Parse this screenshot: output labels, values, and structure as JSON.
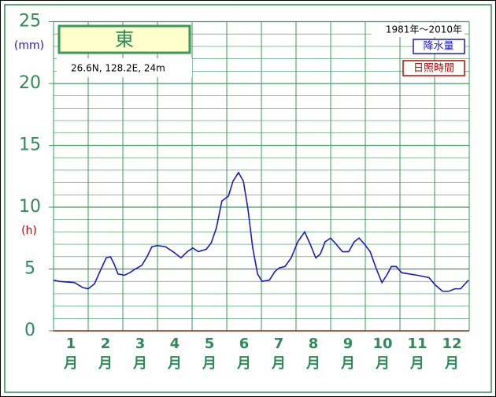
{
  "chart_data": {
    "type": "line",
    "station": "東",
    "location": "26.6N,  128.2E,  24m",
    "period": "1981年～2010年",
    "y_label": "(mm)",
    "y2_label": "(h)",
    "categories": [
      "1",
      "2",
      "3",
      "4",
      "5",
      "6",
      "7",
      "8",
      "9",
      "10",
      "11",
      "12"
    ],
    "category_suffix": "月",
    "xlim": [
      0,
      12
    ],
    "ylim": [
      0,
      25
    ],
    "yticks": [
      0,
      5,
      10,
      15,
      20,
      25
    ],
    "grid": true,
    "legend": "top-right",
    "series": [
      {
        "name": "降水量",
        "color": "#1a1acc",
        "x": [
          0,
          0.16,
          0.61,
          0.84,
          1.0,
          1.18,
          1.34,
          1.52,
          1.64,
          1.75,
          1.86,
          2.05,
          2.2,
          2.36,
          2.55,
          2.7,
          2.84,
          3.0,
          3.23,
          3.45,
          3.68,
          3.86,
          4.02,
          4.18,
          4.41,
          4.55,
          4.7,
          4.86,
          5.05,
          5.18,
          5.34,
          5.48,
          5.61,
          5.75,
          5.89,
          6.02,
          6.23,
          6.39,
          6.52,
          6.68,
          6.86,
          7.05,
          7.25,
          7.41,
          7.57,
          7.7,
          7.84,
          8.0,
          8.16,
          8.34,
          8.52,
          8.68,
          8.82,
          8.98,
          9.14,
          9.32,
          9.48,
          9.64,
          9.75,
          9.89,
          10.05,
          10.27,
          10.5,
          10.84,
          11.02,
          11.23,
          11.41,
          11.59,
          11.75,
          11.98
        ],
        "values": [
          4.1,
          4.0,
          3.9,
          3.5,
          3.4,
          3.8,
          4.8,
          5.9,
          6.0,
          5.4,
          4.6,
          4.5,
          4.7,
          5.0,
          5.3,
          6.0,
          6.8,
          6.9,
          6.8,
          6.4,
          5.9,
          6.4,
          6.7,
          6.4,
          6.6,
          7.1,
          8.3,
          10.5,
          10.9,
          12.1,
          12.8,
          12.1,
          9.9,
          6.7,
          4.6,
          4.0,
          4.1,
          4.8,
          5.1,
          5.2,
          5.9,
          7.2,
          8.0,
          7.0,
          5.9,
          6.2,
          7.2,
          7.5,
          7.0,
          6.4,
          6.4,
          7.2,
          7.5,
          7.0,
          6.4,
          5.0,
          3.9,
          4.6,
          5.2,
          5.2,
          4.7,
          4.6,
          4.5,
          4.3,
          3.7,
          3.2,
          3.2,
          3.4,
          3.4,
          4.1
        ]
      }
    ],
    "secondary_legend": {
      "name": "日照時間",
      "color": "#cc0000"
    }
  }
}
